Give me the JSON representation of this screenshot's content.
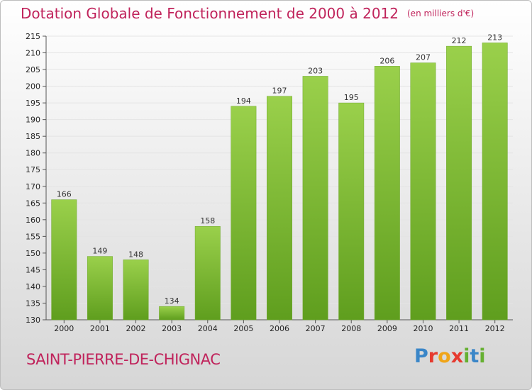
{
  "title": "Dotation Globale de Fonctionnement de 2000 à 2012",
  "unit": "(en milliers d'€)",
  "commune": "SAINT-PIERRE-DE-CHIGNAC",
  "logo": {
    "letters": [
      "P",
      "r",
      "o",
      "x",
      "i",
      "t",
      "i"
    ]
  },
  "colors": {
    "title": "#c0235b",
    "bar_top": "#9ad04b",
    "bar_bottom": "#5f9e1e"
  },
  "chart_data": {
    "type": "bar",
    "categories": [
      "2000",
      "2001",
      "2002",
      "2003",
      "2004",
      "2005",
      "2006",
      "2007",
      "2008",
      "2009",
      "2010",
      "2011",
      "2012"
    ],
    "values": [
      166,
      149,
      148,
      134,
      158,
      194,
      197,
      203,
      195,
      206,
      207,
      212,
      213
    ],
    "title": "Dotation Globale de Fonctionnement de 2000 à 2012",
    "xlabel": "",
    "ylabel": "",
    "ylim": [
      130,
      215
    ],
    "yticks": [
      130,
      135,
      140,
      145,
      150,
      155,
      160,
      165,
      170,
      175,
      180,
      185,
      190,
      195,
      200,
      205,
      210,
      215
    ],
    "grid": true,
    "legend": "none"
  }
}
